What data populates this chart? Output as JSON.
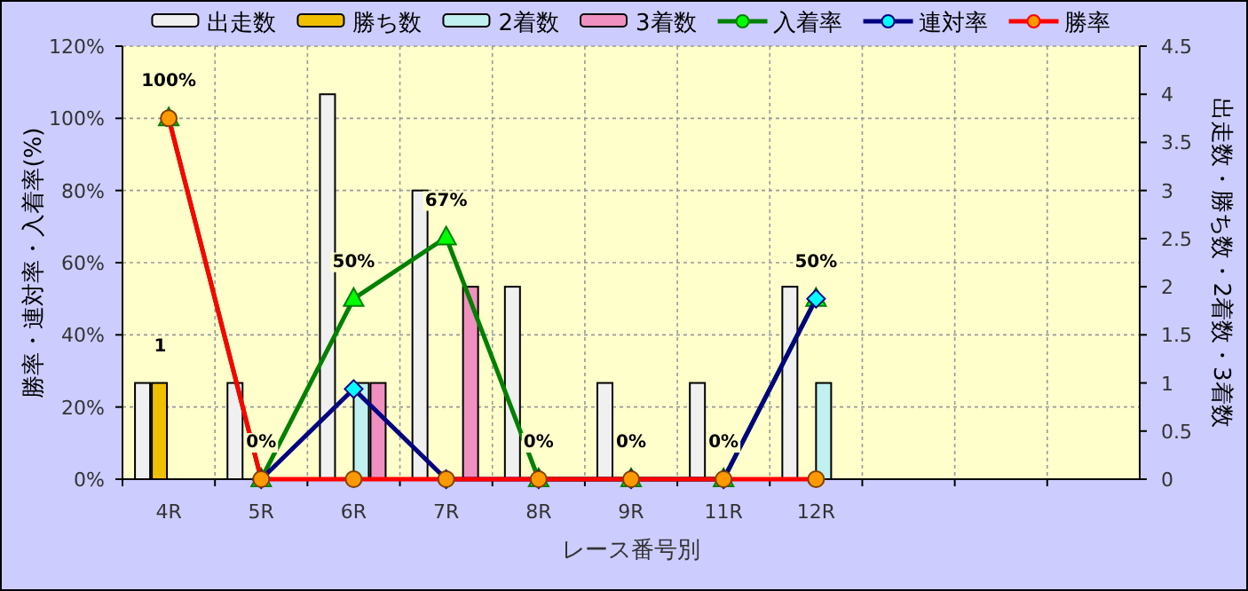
{
  "chart_data": {
    "type": "bar",
    "xlabel": "レース番号別",
    "ylabel": "勝率・連対率・入着率(%)",
    "y2label": "出走数・勝ち数・2着数・3着数",
    "categories": [
      "4R",
      "5R",
      "6R",
      "7R",
      "8R",
      "9R",
      "11R",
      "12R",
      null,
      null,
      null
    ],
    "ylim": [
      0,
      120
    ],
    "yticks": [
      {
        "value": 0,
        "label": "0%"
      },
      {
        "value": 20,
        "label": "20%"
      },
      {
        "value": 40,
        "label": "40%"
      },
      {
        "value": 60,
        "label": "60%"
      },
      {
        "value": 80,
        "label": "80%"
      },
      {
        "value": 100,
        "label": "100%"
      },
      {
        "value": 120,
        "label": "120%"
      }
    ],
    "y2lim": [
      0,
      4.5
    ],
    "y2ticks": [
      0,
      0.5,
      1,
      1.5,
      2,
      2.5,
      3,
      3.5,
      4,
      4.5
    ],
    "grid": true,
    "legend": "top",
    "series": [
      {
        "name": "出走数",
        "axis": "y2",
        "color": "#f0f0f0",
        "values": [
          1,
          1,
          4,
          3,
          2,
          1,
          1,
          2,
          null,
          null,
          null
        ]
      },
      {
        "name": "勝ち数",
        "axis": "y2",
        "color": "#f0c000",
        "values": [
          1,
          0,
          0,
          0,
          0,
          0,
          0,
          0,
          null,
          null,
          null
        ],
        "value_labels": [
          "1",
          null,
          null,
          null,
          null,
          null,
          null,
          null,
          null,
          null,
          null
        ]
      },
      {
        "name": "2着数",
        "axis": "y2",
        "color": "#c0f0f0",
        "values": [
          0,
          0,
          1,
          0,
          0,
          0,
          0,
          1,
          null,
          null,
          null
        ]
      },
      {
        "name": "3着数",
        "axis": "y2",
        "color": "#f090c0",
        "values": [
          0,
          0,
          1,
          2,
          0,
          0,
          0,
          0,
          null,
          null,
          null
        ]
      },
      {
        "name": "入着率",
        "type": "line",
        "color": "#008000",
        "marker": "triangle",
        "values": [
          100,
          0,
          50,
          67,
          0,
          0,
          0,
          50,
          null,
          null,
          null
        ],
        "value_labels": [
          "100%",
          "0%",
          "50%",
          "67%",
          "0%",
          "0%",
          "0%",
          "50%",
          null,
          null,
          null
        ]
      },
      {
        "name": "連対率",
        "type": "line",
        "color": "#000080",
        "marker": "diamond",
        "values": [
          null,
          0,
          25,
          0,
          0,
          0,
          0,
          50,
          null,
          null,
          null
        ]
      },
      {
        "name": "勝率",
        "type": "line",
        "color": "#ff0000",
        "marker": "circle",
        "values": [
          100,
          0,
          0,
          0,
          0,
          0,
          0,
          0,
          null,
          null,
          null
        ]
      }
    ]
  }
}
